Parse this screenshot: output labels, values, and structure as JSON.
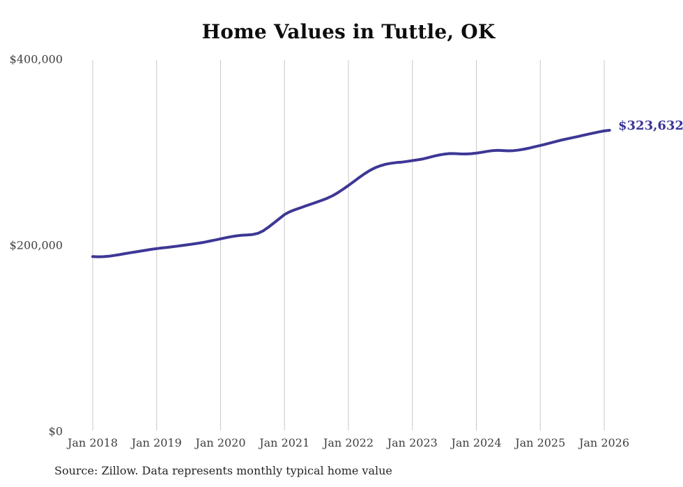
{
  "chart": {
    "title": "Home Values in Tuttle, OK",
    "end_label": "$323,632",
    "source_note": "Source: Zillow. Data represents monthly typical home value"
  },
  "colors": {
    "line": "#3d3795",
    "end_label": "#3a3399",
    "gridline": "#c8c8c8",
    "tick_label": "#3f3f3f",
    "title": "#0d0d0d",
    "source": "#262626"
  },
  "chart_data": {
    "type": "line",
    "title": "Home Values in Tuttle, OK",
    "xlabel": "",
    "ylabel": "",
    "ylim": [
      0,
      400000
    ],
    "grid": "vertical-only",
    "legend": "none",
    "x_start": "2018-01",
    "x_end": "2026-02",
    "x_frequency": "monthly",
    "x_tick_labels": [
      "Jan 2018",
      "Jan 2019",
      "Jan 2020",
      "Jan 2021",
      "Jan 2022",
      "Jan 2023",
      "Jan 2024",
      "Jan 2025",
      "Jan 2026"
    ],
    "x_tick_month_indices": [
      0,
      12,
      24,
      36,
      48,
      60,
      72,
      84,
      96
    ],
    "y_ticks": [
      {
        "label": "$0",
        "value": 0
      },
      {
        "label": "$200,000",
        "value": 200000
      },
      {
        "label": "$400,000",
        "value": 400000
      }
    ],
    "end_label": "$323,632",
    "end_value": 323632,
    "series": [
      {
        "name": "Typical home value",
        "values": [
          187800,
          187600,
          187700,
          188200,
          189000,
          189900,
          190900,
          191900,
          192800,
          193700,
          194700,
          195600,
          196400,
          197100,
          197700,
          198400,
          199100,
          199900,
          200700,
          201500,
          202300,
          203300,
          204500,
          205700,
          206900,
          208100,
          209200,
          210100,
          210800,
          211100,
          211500,
          212800,
          215500,
          219500,
          224000,
          228500,
          233000,
          236000,
          238300,
          240300,
          242300,
          244300,
          246300,
          248300,
          250500,
          253200,
          256500,
          260300,
          264300,
          268500,
          272700,
          276800,
          280400,
          283300,
          285500,
          287100,
          288200,
          288900,
          289400,
          290100,
          291000,
          291800,
          292800,
          294200,
          295700,
          297000,
          298000,
          298600,
          298500,
          298200,
          298100,
          298400,
          299000,
          299900,
          300900,
          301700,
          302000,
          301800,
          301500,
          301700,
          302400,
          303400,
          304600,
          305900,
          307300,
          308700,
          310200,
          311700,
          313100,
          314400,
          315600,
          316800,
          318100,
          319400,
          320700,
          321900,
          322900,
          323632
        ]
      }
    ]
  }
}
